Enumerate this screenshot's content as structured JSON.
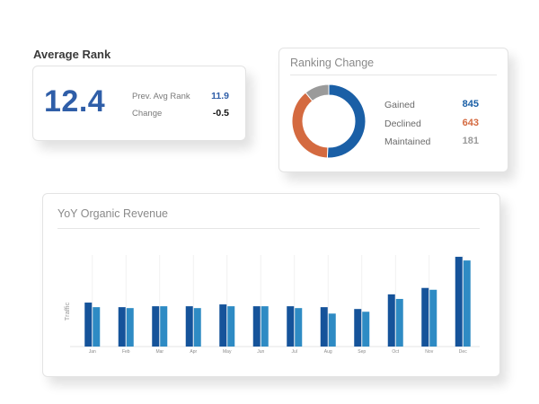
{
  "average_rank": {
    "heading": "Average Rank",
    "value": "12.4",
    "prev_label": "Prev. Avg Rank",
    "prev_value": "11.9",
    "change_label": "Change",
    "change_value": "-0.5"
  },
  "ranking_change": {
    "title": "Ranking Change",
    "items": [
      {
        "label": "Gained",
        "value": "845",
        "color": "#1a5fa6"
      },
      {
        "label": "Declined",
        "value": "643",
        "color": "#d46a40"
      },
      {
        "label": "Maintained",
        "value": "181",
        "color": "#9a9a9a"
      }
    ]
  },
  "revenue": {
    "title": "YoY Organic Revenue"
  },
  "chart_data": [
    {
      "type": "pie",
      "title": "Ranking Change",
      "categories": [
        "Gained",
        "Declined",
        "Maintained"
      ],
      "values": [
        845,
        643,
        181
      ],
      "colors": [
        "#1a5fa6",
        "#d46a40",
        "#9a9a9a"
      ],
      "style": "donut"
    },
    {
      "type": "bar",
      "title": "YoY Organic Revenue",
      "ylabel": "Traffic",
      "xlabel": "",
      "categories": [
        "Jan",
        "Feb",
        "Mar",
        "Apr",
        "May",
        "Jun",
        "Jul",
        "Aug",
        "Sep",
        "Oct",
        "Nov",
        "Dec"
      ],
      "series": [
        {
          "values": [
            48,
            43,
            44,
            44,
            46,
            44,
            44,
            43,
            41,
            57,
            64,
            98
          ],
          "color": "#15539a"
        },
        {
          "values": [
            43,
            42,
            44,
            42,
            44,
            44,
            42,
            36,
            38,
            52,
            62,
            94
          ],
          "color": "#2e8bc4"
        }
      ],
      "ylim": [
        0,
        100
      ],
      "grid": "vertical"
    }
  ]
}
